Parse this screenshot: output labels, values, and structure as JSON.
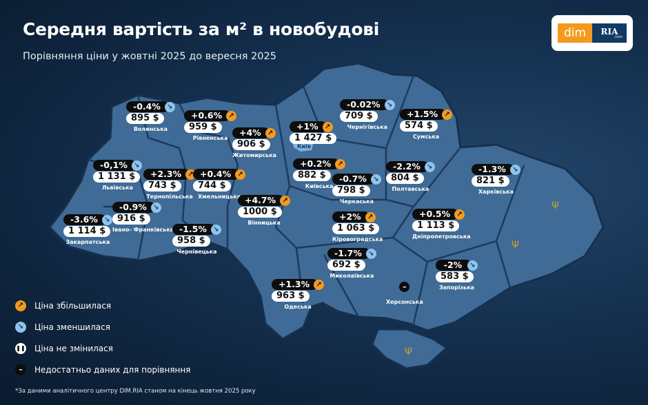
{
  "header": {
    "title": "Середня вартість за м² в новобудові",
    "subtitle": "Порівняння ціни у жовтні 2025 до вересня 2025"
  },
  "logo": {
    "dim": "dim",
    "ria": "RIA",
    "com": ".com"
  },
  "colors": {
    "increase": "#f39a1e",
    "decrease": "#8ec4ee",
    "map_fill": "#3f6b96",
    "background": "#0f2540"
  },
  "regions": [
    {
      "name": "Волинська",
      "change": "-0.4%",
      "price": "895 $",
      "trend": "down"
    },
    {
      "name": "Рівненська",
      "change": "+0.6%",
      "price": "959 $",
      "trend": "up"
    },
    {
      "name": "Житомирська",
      "change": "+4%",
      "price": "906 $",
      "trend": "up"
    },
    {
      "name": "Київ",
      "change": "+1%",
      "price": "1 427 $",
      "trend": "up"
    },
    {
      "name": "Київська",
      "change": "+0.2%",
      "price": "882 $",
      "trend": "up"
    },
    {
      "name": "Чернігівська",
      "change": "-0.02%",
      "price": "709 $",
      "trend": "down"
    },
    {
      "name": "Сумська",
      "change": "+1.5%",
      "price": "574 $",
      "trend": "up"
    },
    {
      "name": "Львівська",
      "change": "-0,1%",
      "price": "1 131 $",
      "trend": "down"
    },
    {
      "name": "Тернопільська",
      "change": "+2.3%",
      "price": "743 $",
      "trend": "up"
    },
    {
      "name": "Хмельницька",
      "change": "+0.4%",
      "price": "744 $",
      "trend": "up"
    },
    {
      "name": "Вінницька",
      "change": "+4.7%",
      "price": "1000 $",
      "trend": "up"
    },
    {
      "name": "Черкаська",
      "change": "-0.7%",
      "price": "798 $",
      "trend": "down"
    },
    {
      "name": "Полтавська",
      "change": "-2.2%",
      "price": "804 $",
      "trend": "down"
    },
    {
      "name": "Харківська",
      "change": "-1.3%",
      "price": "821 $",
      "trend": "down"
    },
    {
      "name": "Кіровоградська",
      "change": "+2%",
      "price": "1 063 $",
      "trend": "up"
    },
    {
      "name": "Дніпропетровська",
      "change": "+0.5%",
      "price": "1 113 $",
      "trend": "up"
    },
    {
      "name": "Закарпатська",
      "change": "-3.6%",
      "price": "1 114 $",
      "trend": "down"
    },
    {
      "name": "Івано- Франківська",
      "change": "-0.9%",
      "price": "916 $",
      "trend": "down"
    },
    {
      "name": "Чернівецька",
      "change": "-1.5%",
      "price": "958 $",
      "trend": "down"
    },
    {
      "name": "Миколаївська",
      "change": "-1.7%",
      "price": "692 $",
      "trend": "down"
    },
    {
      "name": "Одеська",
      "change": "+1.3%",
      "price": "963 $",
      "trend": "up"
    },
    {
      "name": "Запорізька",
      "change": "-2%",
      "price": "583 $",
      "trend": "down"
    }
  ],
  "kherson": {
    "name": "Херсонська",
    "status": "no-data"
  },
  "legend": [
    {
      "label": "Ціна збільшилася",
      "icon": "arrow-up-right-icon"
    },
    {
      "label": "Ціна зменшилася",
      "icon": "arrow-down-right-icon"
    },
    {
      "label": "Ціна не змінилася",
      "icon": "pause-icon"
    },
    {
      "label": "Недостатньо даних для порівняння",
      "icon": "minus-icon"
    }
  ],
  "footnote": "*За даними аналітичного центру DIM.RIA станом на кінець жовтня 2025 року"
}
